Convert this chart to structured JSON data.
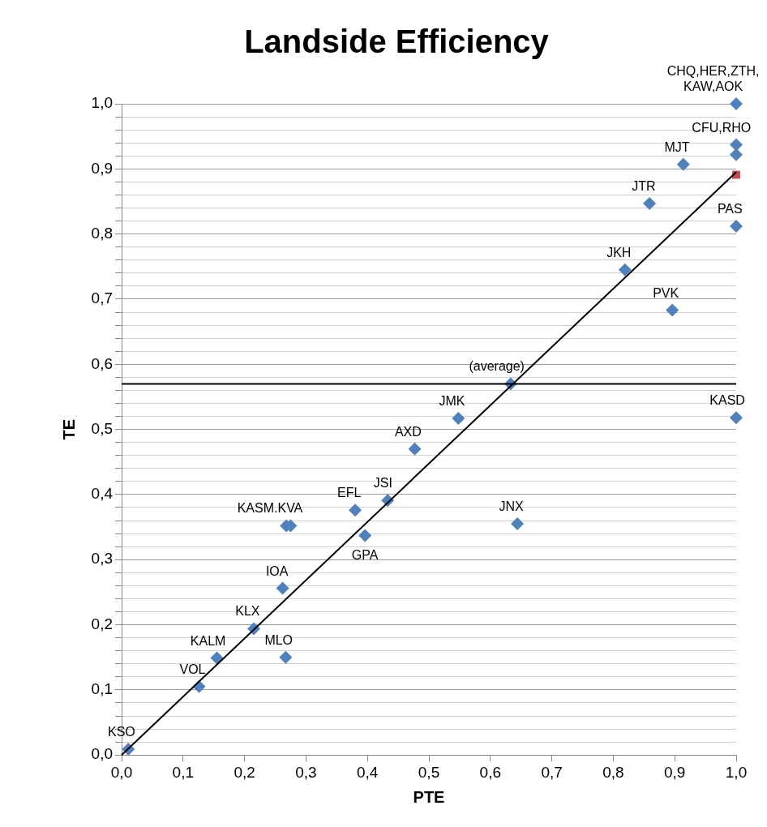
{
  "chart_data": {
    "type": "scatter",
    "title": "Landside Efficiency",
    "xlabel": "PTE",
    "ylabel": "TE",
    "grid": "y",
    "xlim": [
      0,
      1
    ],
    "ylim": [
      0,
      1
    ],
    "xticks": [
      {
        "value": 0,
        "label": "0,0"
      },
      {
        "value": 0.1,
        "label": "0,1"
      },
      {
        "value": 0.2,
        "label": "0,2"
      },
      {
        "value": 0.3,
        "label": "0,3"
      },
      {
        "value": 0.4,
        "label": "0,4"
      },
      {
        "value": 0.5,
        "label": "0,5"
      },
      {
        "value": 0.6,
        "label": "0,6"
      },
      {
        "value": 0.7,
        "label": "0,7"
      },
      {
        "value": 0.8,
        "label": "0,8"
      },
      {
        "value": 0.9,
        "label": "0,9"
      },
      {
        "value": 1,
        "label": "1,0"
      }
    ],
    "yticks": [
      {
        "value": 0,
        "label": "0,0"
      },
      {
        "value": 0.02,
        "label": null
      },
      {
        "value": 0.04,
        "label": null
      },
      {
        "value": 0.06,
        "label": null
      },
      {
        "value": 0.08,
        "label": null
      },
      {
        "value": 0.1,
        "label": "0,1"
      },
      {
        "value": 0.12,
        "label": null
      },
      {
        "value": 0.14,
        "label": null
      },
      {
        "value": 0.16,
        "label": null
      },
      {
        "value": 0.18,
        "label": null
      },
      {
        "value": 0.2,
        "label": "0,2"
      },
      {
        "value": 0.22,
        "label": null
      },
      {
        "value": 0.24,
        "label": null
      },
      {
        "value": 0.26,
        "label": null
      },
      {
        "value": 0.28,
        "label": null
      },
      {
        "value": 0.3,
        "label": "0,3"
      },
      {
        "value": 0.32,
        "label": null
      },
      {
        "value": 0.34,
        "label": null
      },
      {
        "value": 0.36,
        "label": null
      },
      {
        "value": 0.38,
        "label": null
      },
      {
        "value": 0.4,
        "label": "0,4"
      },
      {
        "value": 0.42,
        "label": null
      },
      {
        "value": 0.44,
        "label": null
      },
      {
        "value": 0.46,
        "label": null
      },
      {
        "value": 0.48,
        "label": null
      },
      {
        "value": 0.5,
        "label": "0,5"
      },
      {
        "value": 0.52,
        "label": null
      },
      {
        "value": 0.54,
        "label": null
      },
      {
        "value": 0.56,
        "label": null
      },
      {
        "value": 0.58,
        "label": null
      },
      {
        "value": 0.6,
        "label": "0,6"
      },
      {
        "value": 0.62,
        "label": null
      },
      {
        "value": 0.64,
        "label": null
      },
      {
        "value": 0.66,
        "label": null
      },
      {
        "value": 0.68,
        "label": null
      },
      {
        "value": 0.7,
        "label": "0,7"
      },
      {
        "value": 0.72,
        "label": null
      },
      {
        "value": 0.74,
        "label": null
      },
      {
        "value": 0.76,
        "label": null
      },
      {
        "value": 0.78,
        "label": null
      },
      {
        "value": 0.8,
        "label": "0,8"
      },
      {
        "value": 0.82,
        "label": null
      },
      {
        "value": 0.84,
        "label": null
      },
      {
        "value": 0.86,
        "label": null
      },
      {
        "value": 0.88,
        "label": null
      },
      {
        "value": 0.9,
        "label": "0,9"
      },
      {
        "value": 0.92,
        "label": null
      },
      {
        "value": 0.94,
        "label": null
      },
      {
        "value": 0.96,
        "label": null
      },
      {
        "value": 0.98,
        "label": null
      },
      {
        "value": 1,
        "label": "1,0"
      }
    ],
    "series": [
      {
        "color": "#4f81bd",
        "marker": "diamond",
        "x": [
          0.011,
          0.126,
          0.155,
          0.215,
          0.267,
          0.262,
          0.268,
          0.275,
          0.38,
          0.396,
          0.433,
          0.477,
          0.548,
          0.644,
          0.633,
          0.819,
          0.896,
          0.859,
          0.914,
          1,
          1,
          1,
          1,
          1
        ],
        "values": [
          0.009,
          0.105,
          0.149,
          0.194,
          0.15,
          0.256,
          0.352,
          0.352,
          0.376,
          0.337,
          0.391,
          0.47,
          0.517,
          0.355,
          0.57,
          0.745,
          0.683,
          0.847,
          0.907,
          0.812,
          1,
          0.937,
          0.922,
          0.518
        ]
      },
      {
        "color": "#c0504d",
        "marker": "square",
        "x": [
          1
        ],
        "values": [
          0.891
        ]
      },
      {
        "type": "line",
        "color": "#000000",
        "marker": "none",
        "x": [
          0,
          1
        ],
        "values": [
          0,
          0.895
        ]
      }
    ],
    "ref_lines": [
      {
        "axis": "y",
        "value": 0.57,
        "color": "#000000"
      }
    ],
    "annotations": [
      {
        "text": "KSO",
        "x": 0.011,
        "y": 0.009
      },
      {
        "text": "VOL",
        "x": 0.126,
        "y": 0.105
      },
      {
        "text": "KALM",
        "x": 0.155,
        "y": 0.149
      },
      {
        "text": "KLX",
        "x": 0.215,
        "y": 0.194
      },
      {
        "text": "MLO",
        "x": 0.267,
        "y": 0.15
      },
      {
        "text": "IOA",
        "x": 0.262,
        "y": 0.256
      },
      {
        "text": "KASM.KVA",
        "x": 0.268,
        "y": 0.352
      },
      {
        "text": "EFL",
        "x": 0.38,
        "y": 0.376
      },
      {
        "text": "GPA",
        "x": 0.396,
        "y": 0.337
      },
      {
        "text": "JSI",
        "x": 0.433,
        "y": 0.391
      },
      {
        "text": "AXD",
        "x": 0.477,
        "y": 0.47
      },
      {
        "text": "JMK",
        "x": 0.548,
        "y": 0.517
      },
      {
        "text": "JNX",
        "x": 0.644,
        "y": 0.355
      },
      {
        "text": "(average)",
        "x": 0.633,
        "y": 0.57
      },
      {
        "text": "JKH",
        "x": 0.819,
        "y": 0.745
      },
      {
        "text": "PVK",
        "x": 0.896,
        "y": 0.683
      },
      {
        "text": "JTR",
        "x": 0.859,
        "y": 0.847
      },
      {
        "text": "MJT",
        "x": 0.914,
        "y": 0.907
      },
      {
        "text": "PAS",
        "x": 1,
        "y": 0.812
      },
      {
        "text": "CHQ,HER,ZTH,\nKAW,AOK",
        "x": 1,
        "y": 1
      },
      {
        "text": "CFU,RHO",
        "x": 1,
        "y": 0.937
      },
      {
        "text": "KASD",
        "x": 1,
        "y": 0.518
      }
    ]
  }
}
